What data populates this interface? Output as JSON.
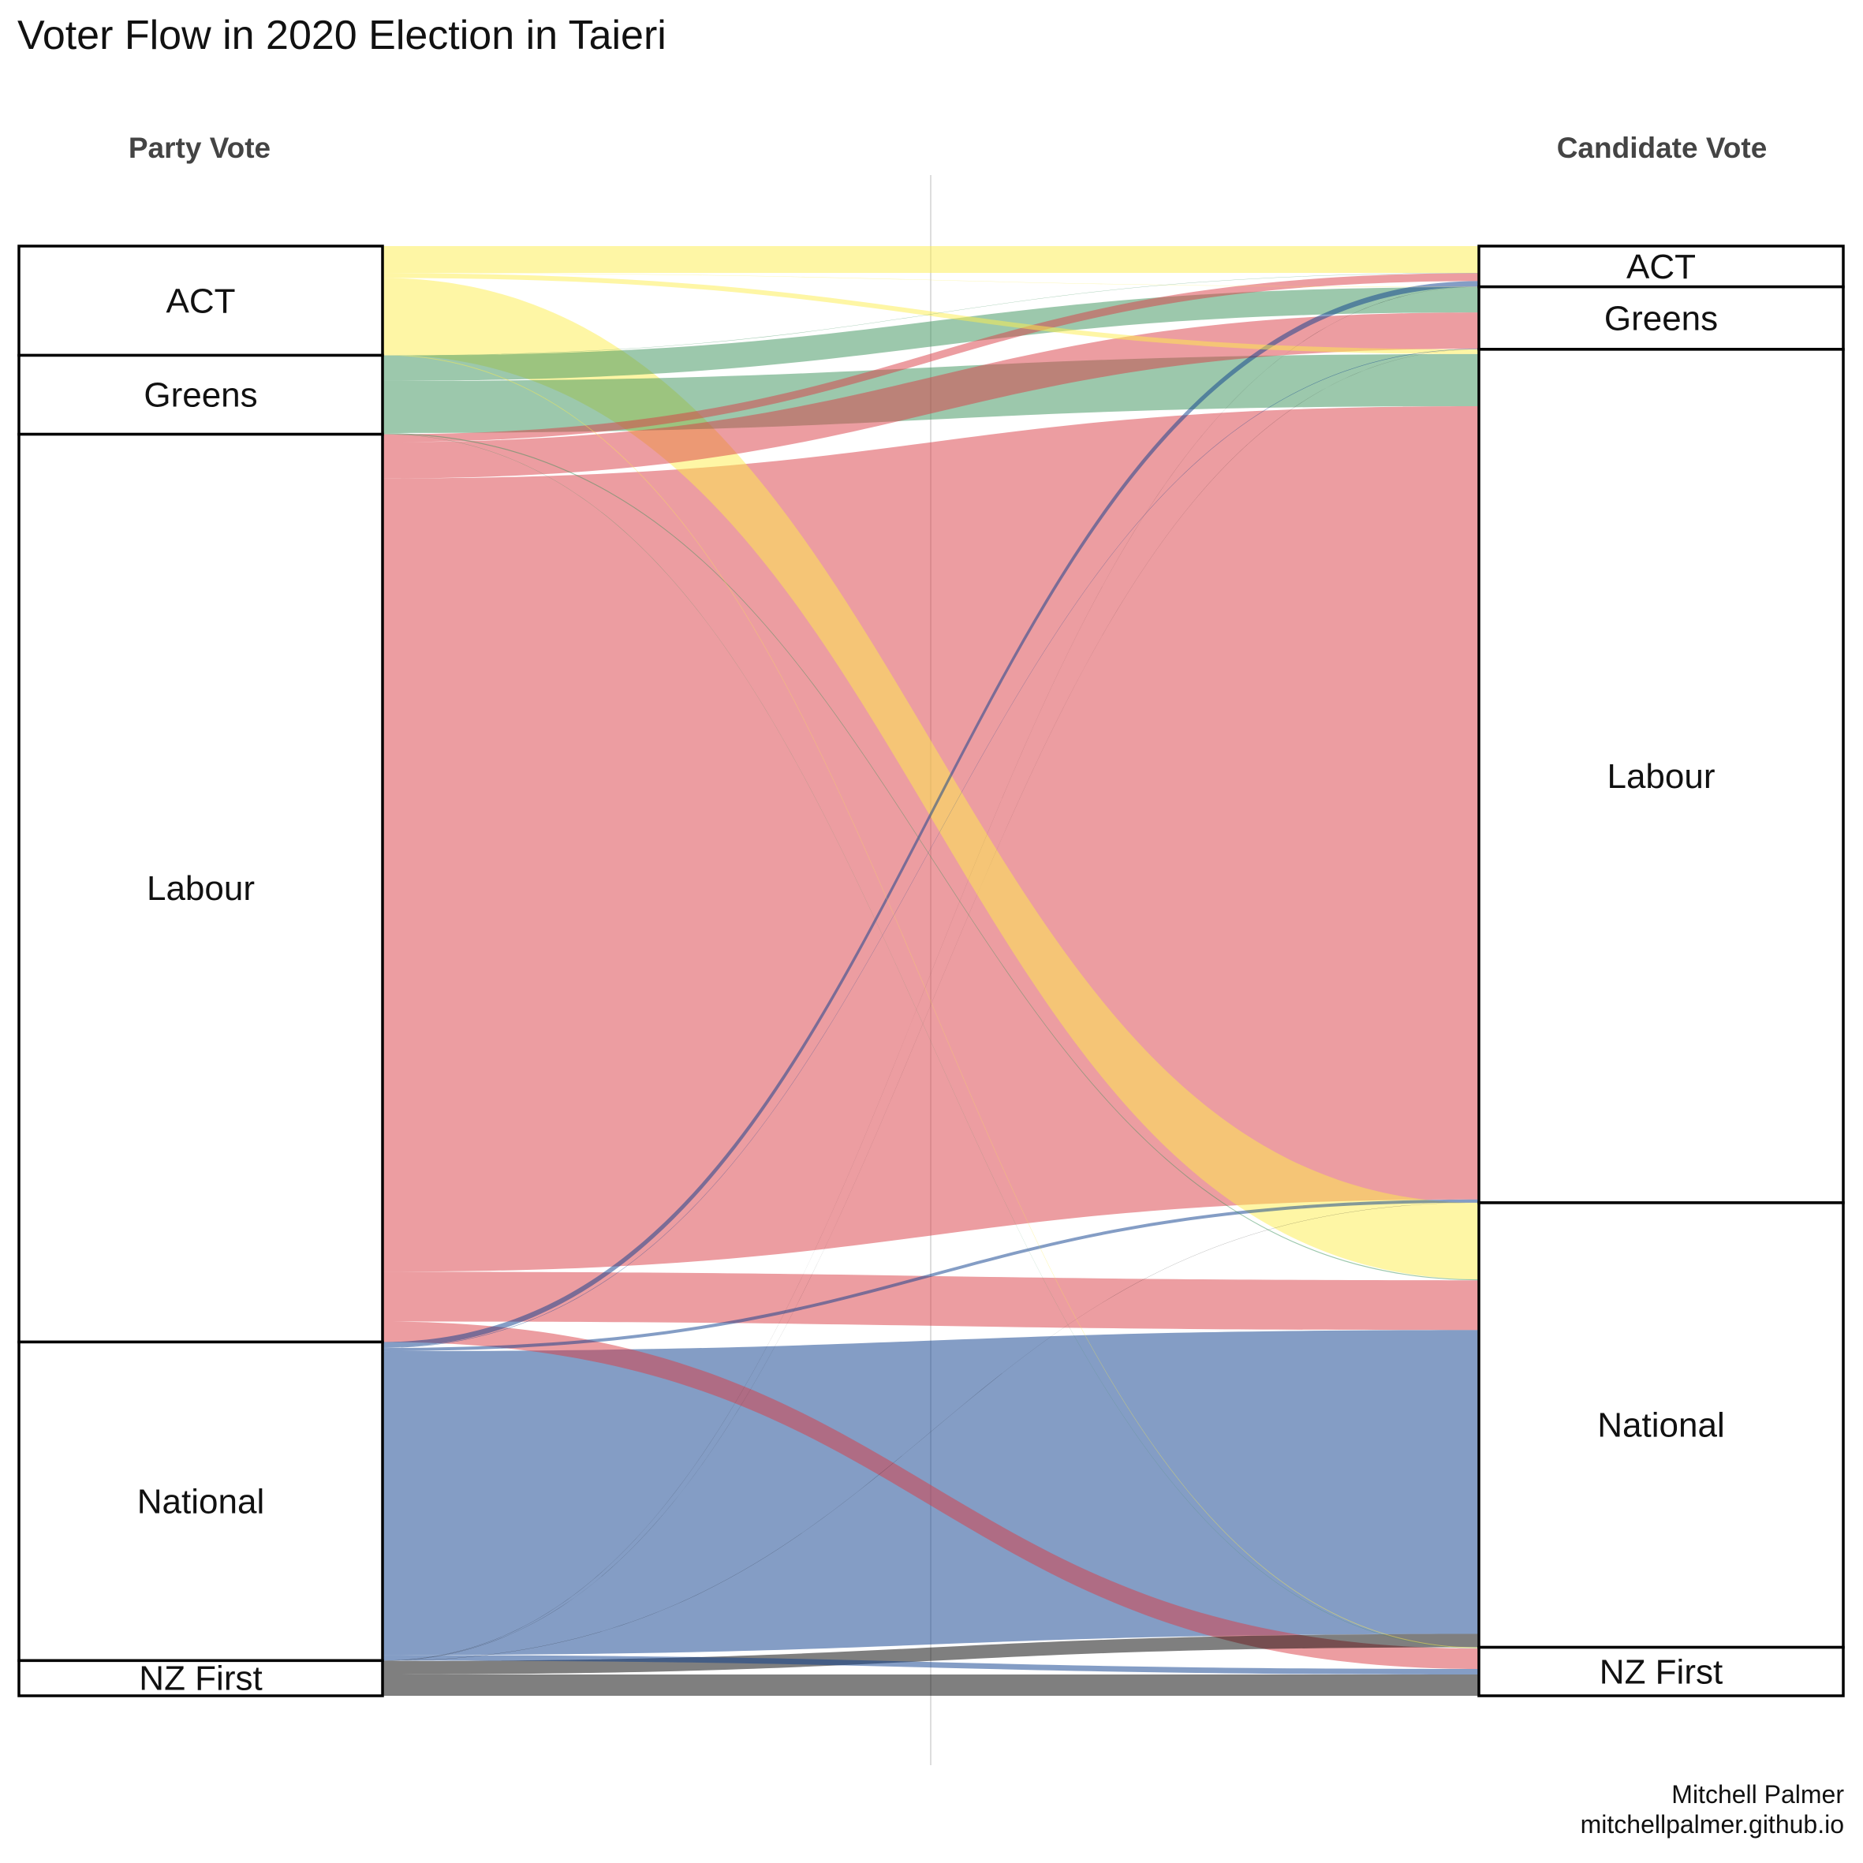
{
  "title": "Voter Flow in 2020 Election in Taieri",
  "credit": {
    "line1": "Mitchell Palmer",
    "line2": "mitchellpalmer.github.io"
  },
  "colors": {
    "ACT": "#fded4b",
    "Greens": "#3a915a",
    "Labour": "#d93b44",
    "National": "#0a3c8c",
    "NZ First": "#000000"
  },
  "chart_data": {
    "type": "alluvial",
    "axes": [
      "Party Vote",
      "Candidate Vote"
    ],
    "left_nodes": [
      "ACT",
      "Greens",
      "Labour",
      "National",
      "NZ First"
    ],
    "right_nodes": [
      "ACT",
      "Greens",
      "Labour",
      "National",
      "NZ First"
    ],
    "flows": [
      {
        "from": "ACT",
        "to": "ACT",
        "value": 340
      },
      {
        "from": "ACT",
        "to": "Greens",
        "value": 4
      },
      {
        "from": "ACT",
        "to": "Labour",
        "value": 60
      },
      {
        "from": "ACT",
        "to": "National",
        "value": 970
      },
      {
        "from": "ACT",
        "to": "NZ First",
        "value": 10
      },
      {
        "from": "Greens",
        "to": "ACT",
        "value": 4
      },
      {
        "from": "Greens",
        "to": "Greens",
        "value": 320
      },
      {
        "from": "Greens",
        "to": "Labour",
        "value": 660
      },
      {
        "from": "Greens",
        "to": "National",
        "value": 12
      },
      {
        "from": "Greens",
        "to": "NZ First",
        "value": 4
      },
      {
        "from": "Labour",
        "to": "ACT",
        "value": 100
      },
      {
        "from": "Labour",
        "to": "Greens",
        "value": 460
      },
      {
        "from": "Labour",
        "to": "Labour",
        "value": 10050
      },
      {
        "from": "Labour",
        "to": "National",
        "value": 630
      },
      {
        "from": "Labour",
        "to": "NZ First",
        "value": 260
      },
      {
        "from": "National",
        "to": "ACT",
        "value": 70
      },
      {
        "from": "National",
        "to": "Greens",
        "value": 6
      },
      {
        "from": "National",
        "to": "Labour",
        "value": 40
      },
      {
        "from": "National",
        "to": "National",
        "value": 3850
      },
      {
        "from": "National",
        "to": "NZ First",
        "value": 70
      },
      {
        "from": "NZ First",
        "to": "ACT",
        "value": 2
      },
      {
        "from": "NZ First",
        "to": "Greens",
        "value": 2
      },
      {
        "from": "NZ First",
        "to": "Labour",
        "value": 2
      },
      {
        "from": "NZ First",
        "to": "National",
        "value": 170
      },
      {
        "from": "NZ First",
        "to": "NZ First",
        "value": 270
      }
    ]
  }
}
